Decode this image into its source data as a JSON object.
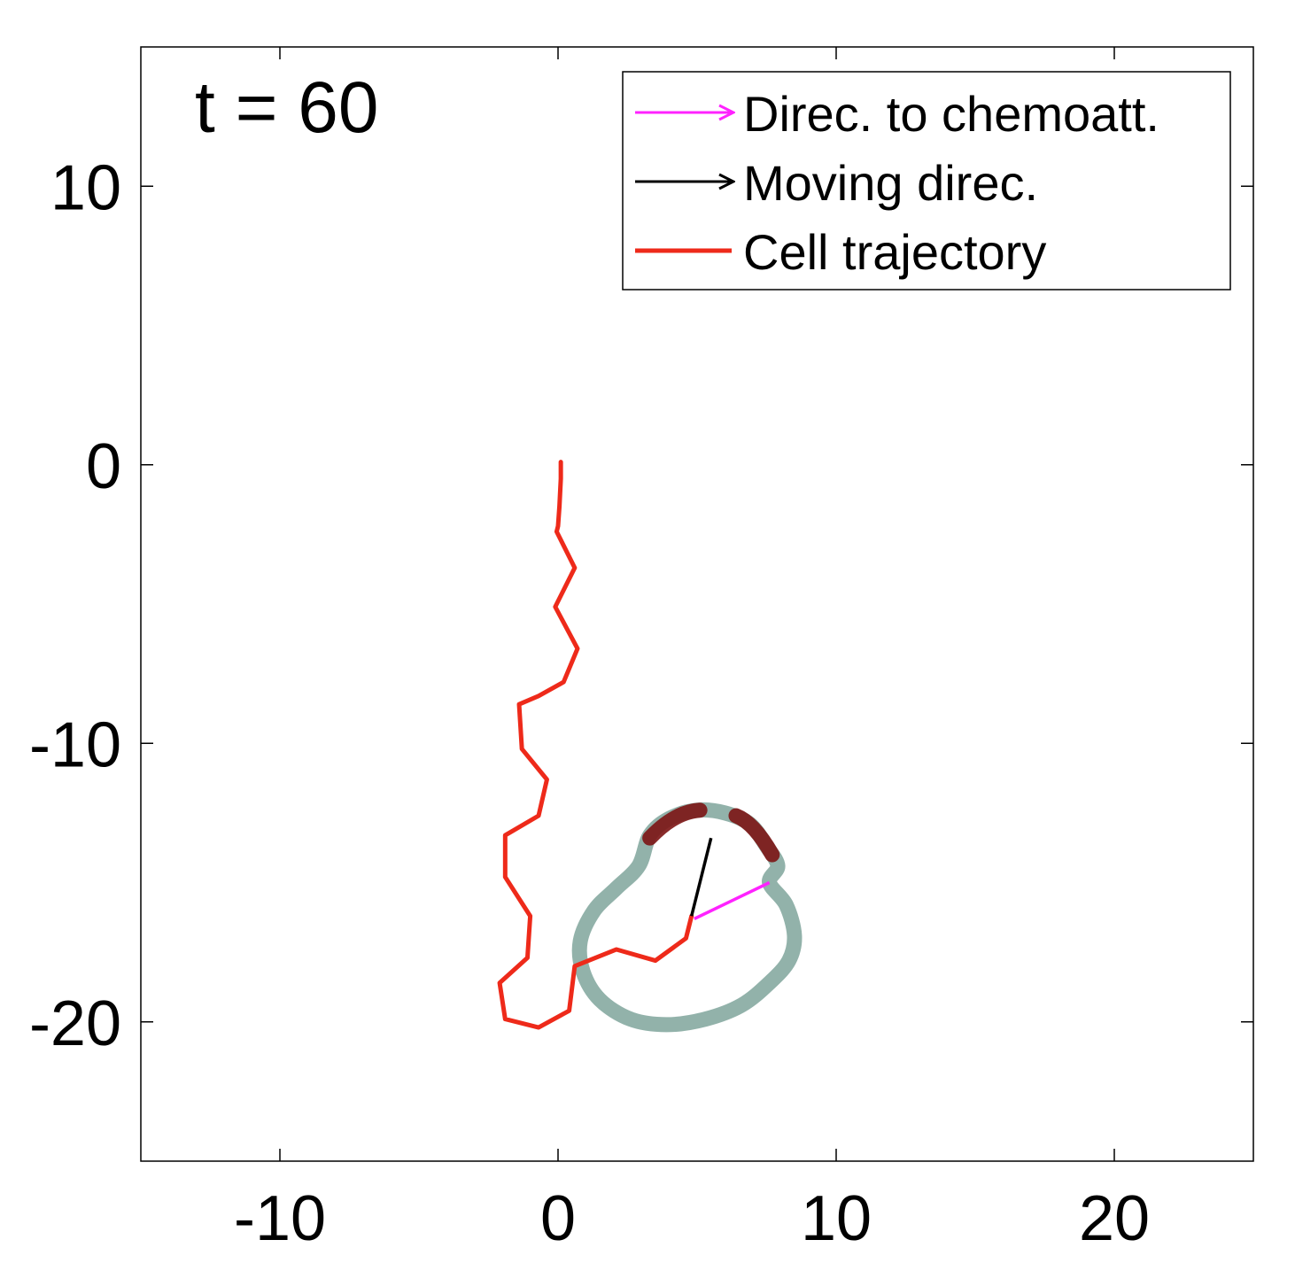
{
  "chart_data": {
    "type": "line",
    "annotation": "t = 60",
    "xlim": [
      -15,
      25
    ],
    "ylim": [
      -25,
      15
    ],
    "x_ticks": [
      -10,
      0,
      10,
      20
    ],
    "y_ticks": [
      -20,
      -10,
      0,
      10
    ],
    "grid": false,
    "legend_position": "top-right",
    "legend": [
      {
        "label": "Direc. to chemoatt.",
        "color": "#ff22ff",
        "style": "arrow"
      },
      {
        "label": "Moving direc.",
        "color": "#000000",
        "style": "arrow"
      },
      {
        "label": "Cell trajectory",
        "color": "#ee2a1a",
        "style": "line"
      }
    ],
    "trajectory": {
      "name": "Cell trajectory",
      "color": "#ee2a1a",
      "x": [
        0.1,
        0.1,
        0.05,
        0.0,
        -0.05,
        0.6,
        -0.1,
        0.7,
        0.2,
        -0.7,
        -1.4,
        -1.3,
        -0.4,
        -0.7,
        -1.9,
        -1.9,
        -1.0,
        -1.1,
        -2.1,
        -1.9,
        -0.7,
        0.4,
        0.6,
        2.1,
        3.5,
        4.6,
        4.8
      ],
      "y": [
        0.1,
        -0.5,
        -1.5,
        -2.2,
        -2.4,
        -3.7,
        -5.1,
        -6.6,
        -7.8,
        -8.3,
        -8.6,
        -10.2,
        -11.3,
        -12.6,
        -13.3,
        -14.8,
        -16.2,
        -17.7,
        -18.6,
        -19.9,
        -20.2,
        -19.6,
        -18.0,
        -17.4,
        -17.8,
        -17.0,
        -16.2
      ]
    },
    "cell_outline": {
      "color": "#92b2aa",
      "x": [
        7.6,
        8.2,
        8.5,
        8.3,
        7.6,
        6.6,
        5.3,
        3.9,
        2.6,
        1.5,
        0.9,
        0.8,
        1.3,
        2.1,
        2.9,
        3.3,
        4.0,
        5.0,
        6.0,
        6.9,
        7.5,
        7.9,
        7.6
      ],
      "y": [
        -15.0,
        -15.8,
        -16.9,
        -17.8,
        -18.6,
        -19.4,
        -19.9,
        -20.1,
        -19.9,
        -19.2,
        -18.2,
        -17.1,
        -16.0,
        -15.2,
        -14.4,
        -13.3,
        -12.7,
        -12.4,
        -12.5,
        -12.9,
        -13.7,
        -14.4,
        -15.0
      ]
    },
    "polarized_arcs": {
      "color": "#7c1414",
      "arcs": [
        {
          "from_x": 3.3,
          "from_y": -13.4,
          "to_x": 5.1,
          "to_y": -12.4
        },
        {
          "from_x": 6.4,
          "from_y": -12.6,
          "to_x": 7.7,
          "to_y": -14.0
        }
      ]
    },
    "chemoattractant_direction": {
      "color": "#ff22ff",
      "x0": 4.9,
      "y0": -16.3,
      "x1": 7.6,
      "y1": -15.0
    },
    "moving_direction": {
      "color": "#000000",
      "x0": 4.8,
      "y0": -16.2,
      "x1": 5.5,
      "y1": -13.4
    }
  }
}
